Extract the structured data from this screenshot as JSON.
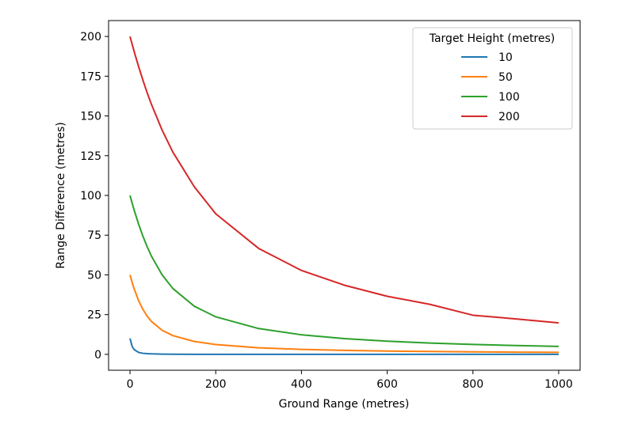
{
  "chart_data": {
    "type": "line",
    "xlabel": "Ground Range (metres)",
    "ylabel": "Range Difference (metres)",
    "xlim": [
      -50,
      1050
    ],
    "ylim": [
      -10,
      210
    ],
    "xticks": [
      0,
      200,
      400,
      600,
      800,
      1000
    ],
    "yticks": [
      0,
      25,
      50,
      75,
      100,
      125,
      150,
      175,
      200
    ],
    "xtick_labels": [
      "0",
      "200",
      "400",
      "600",
      "800",
      "1000"
    ],
    "ytick_labels": [
      "0",
      "25",
      "50",
      "75",
      "100",
      "125",
      "150",
      "175",
      "200"
    ],
    "grid": false,
    "legend": {
      "title": "Target Height (metres)",
      "placement": "top-right"
    },
    "x": [
      0,
      5,
      10,
      20,
      30,
      40,
      50,
      75,
      100,
      150,
      200,
      300,
      400,
      500,
      600,
      700,
      800,
      900,
      1000
    ],
    "series": [
      {
        "name": "10",
        "color": "#1f77b4",
        "values": [
          10.0,
          5.0,
          2.93,
          1.24,
          0.67,
          0.44,
          0.31,
          0.15,
          0.09,
          0.04,
          0.02,
          0.01,
          0.01,
          0.01,
          0.0,
          0.0,
          0.0,
          0.0,
          0.0
        ]
      },
      {
        "name": "50",
        "color": "#ff7f0e",
        "values": [
          50.0,
          45.25,
          41.0,
          33.85,
          28.31,
          24.03,
          20.71,
          15.14,
          11.8,
          8.11,
          6.16,
          4.14,
          3.12,
          2.5,
          2.08,
          1.79,
          1.56,
          1.39,
          1.25
        ]
      },
      {
        "name": "100",
        "color": "#2ca02c",
        "values": [
          100.0,
          95.12,
          90.5,
          81.98,
          74.4,
          67.7,
          61.8,
          50.0,
          41.42,
          30.28,
          23.61,
          16.23,
          12.31,
          9.9,
          8.28,
          7.11,
          6.23,
          5.54,
          4.99
        ]
      },
      {
        "name": "200",
        "color": "#d62728",
        "values": [
          200.0,
          195.06,
          190.25,
          181.1,
          172.56,
          164.62,
          157.28,
          141.02,
          127.21,
          105.41,
          88.43,
          66.67,
          52.79,
          43.52,
          36.55,
          31.45,
          24.62,
          22.32,
          19.8
        ]
      }
    ]
  }
}
